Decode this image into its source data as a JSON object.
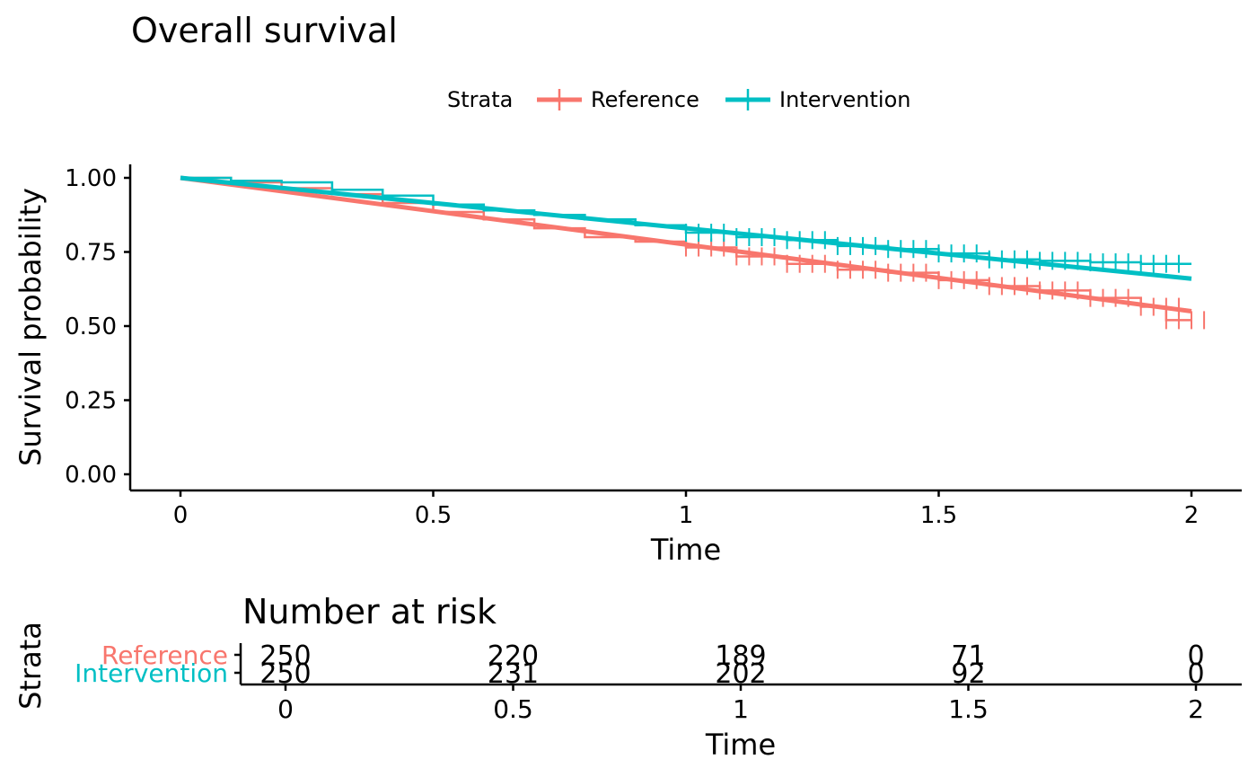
{
  "chart_data": {
    "type": "line",
    "title": "Overall survival",
    "legend": {
      "title": "Strata",
      "position": "top"
    },
    "xlabel": "Time",
    "ylabel": "Survival probability",
    "xlim": [
      -0.1,
      2.1
    ],
    "ylim": [
      -0.05,
      1.05
    ],
    "xticks": [
      0,
      0.5,
      1,
      1.5,
      2
    ],
    "xtick_labels": [
      "0",
      "0.5",
      "1",
      "1.5",
      "2"
    ],
    "yticks": [
      0,
      0.25,
      0.5,
      0.75,
      1
    ],
    "ytick_labels": [
      "0.00",
      "0.25",
      "0.50",
      "0.75",
      "1.00"
    ],
    "grid": false,
    "series": [
      {
        "name": "Reference",
        "color": "#F8766D",
        "km_curve": [
          [
            0,
            1.0
          ],
          [
            0.1,
            0.985
          ],
          [
            0.2,
            0.965
          ],
          [
            0.3,
            0.945
          ],
          [
            0.4,
            0.915
          ],
          [
            0.5,
            0.885
          ],
          [
            0.6,
            0.86
          ],
          [
            0.7,
            0.83
          ],
          [
            0.8,
            0.8
          ],
          [
            0.9,
            0.785
          ],
          [
            1.0,
            0.765
          ],
          [
            1.1,
            0.735
          ],
          [
            1.2,
            0.71
          ],
          [
            1.3,
            0.69
          ],
          [
            1.4,
            0.68
          ],
          [
            1.5,
            0.655
          ],
          [
            1.6,
            0.635
          ],
          [
            1.7,
            0.62
          ],
          [
            1.8,
            0.595
          ],
          [
            1.9,
            0.565
          ],
          [
            1.95,
            0.52
          ],
          [
            2.0,
            0.52
          ]
        ],
        "fit_line": [
          [
            0,
            1.0
          ],
          [
            2.0,
            0.55
          ]
        ]
      },
      {
        "name": "Intervention",
        "color": "#00BFC4",
        "km_curve": [
          [
            0,
            1.0
          ],
          [
            0.1,
            0.99
          ],
          [
            0.2,
            0.985
          ],
          [
            0.3,
            0.96
          ],
          [
            0.4,
            0.94
          ],
          [
            0.5,
            0.91
          ],
          [
            0.6,
            0.89
          ],
          [
            0.7,
            0.875
          ],
          [
            0.8,
            0.86
          ],
          [
            0.9,
            0.84
          ],
          [
            1.0,
            0.815
          ],
          [
            1.1,
            0.8
          ],
          [
            1.2,
            0.79
          ],
          [
            1.3,
            0.77
          ],
          [
            1.4,
            0.76
          ],
          [
            1.5,
            0.745
          ],
          [
            1.6,
            0.725
          ],
          [
            1.7,
            0.72
          ],
          [
            1.8,
            0.715
          ],
          [
            1.9,
            0.71
          ],
          [
            2.0,
            0.71
          ]
        ],
        "fit_line": [
          [
            0,
            1.0
          ],
          [
            2.0,
            0.66
          ]
        ]
      }
    ],
    "risk_table": {
      "title": "Number at risk",
      "ylabel": "Strata",
      "xlabel": "Time",
      "times": [
        0,
        0.5,
        1,
        1.5,
        2
      ],
      "time_labels": [
        "0",
        "0.5",
        "1",
        "1.5",
        "2"
      ],
      "rows": [
        {
          "name": "Reference",
          "values": [
            "250",
            "220",
            "189",
            "71",
            "0"
          ]
        },
        {
          "name": "Intervention",
          "values": [
            "250",
            "231",
            "202",
            "92",
            "0"
          ]
        }
      ]
    }
  }
}
